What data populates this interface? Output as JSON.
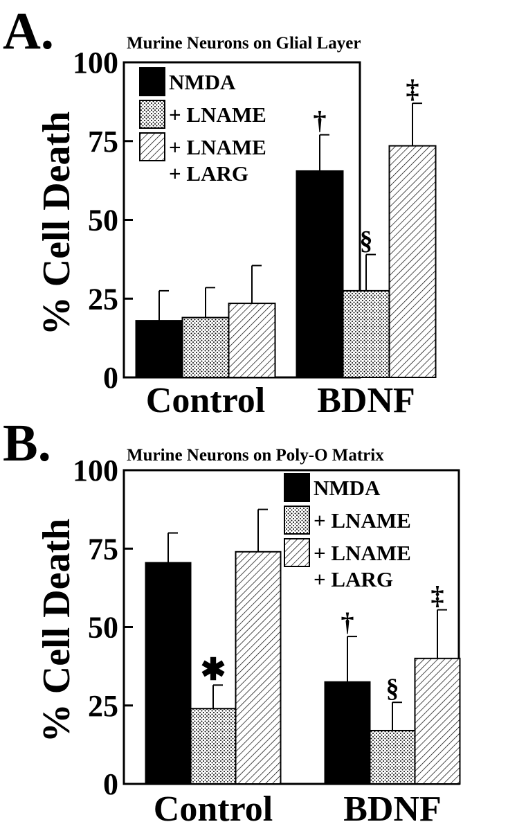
{
  "chart_data": [
    {
      "type": "bar",
      "panel_label": "A.",
      "title": "Murine Neurons on Glial Layer",
      "ylabel": "% Cell Death",
      "xlabel": "",
      "categories": [
        "Control",
        "BDNF"
      ],
      "ylim": [
        0,
        100
      ],
      "yticks": [
        "0",
        "25",
        "50",
        "75",
        "100"
      ],
      "grid": false,
      "legend_position": "top-left",
      "series": [
        {
          "name": "NMDA",
          "pattern": "solid",
          "values": [
            18,
            65.5
          ],
          "errors": [
            9.5,
            11.5
          ],
          "markers": [
            "",
            "†"
          ]
        },
        {
          "name": "+ LNAME",
          "pattern": "dots",
          "values": [
            19,
            27.5
          ],
          "errors": [
            9.5,
            11.5
          ],
          "markers": [
            "",
            "§"
          ]
        },
        {
          "name": "+ LNAME\n+ LARG",
          "pattern": "hatch",
          "values": [
            23.5,
            73.5
          ],
          "errors": [
            12,
            13.5
          ],
          "markers": [
            "",
            "‡"
          ]
        }
      ]
    },
    {
      "type": "bar",
      "panel_label": "B.",
      "title": "Murine Neurons on Poly-O Matrix",
      "ylabel": "% Cell Death",
      "xlabel": "",
      "categories": [
        "Control",
        "BDNF"
      ],
      "ylim": [
        0,
        100
      ],
      "yticks": [
        "0",
        "25",
        "50",
        "75",
        "100"
      ],
      "grid": false,
      "legend_position": "top-right",
      "series": [
        {
          "name": "NMDA",
          "pattern": "solid",
          "values": [
            70.5,
            32.5
          ],
          "errors": [
            9.5,
            14.5
          ],
          "markers": [
            "",
            "†"
          ]
        },
        {
          "name": "+ LNAME",
          "pattern": "dots",
          "values": [
            24,
            17
          ],
          "errors": [
            7.5,
            9
          ],
          "markers": [
            "✱",
            "§"
          ]
        },
        {
          "name": "+ LNAME\n+ LARG",
          "pattern": "hatch",
          "values": [
            74,
            40
          ],
          "errors": [
            13.5,
            15.5
          ],
          "markers": [
            "",
            "‡"
          ]
        }
      ]
    }
  ]
}
